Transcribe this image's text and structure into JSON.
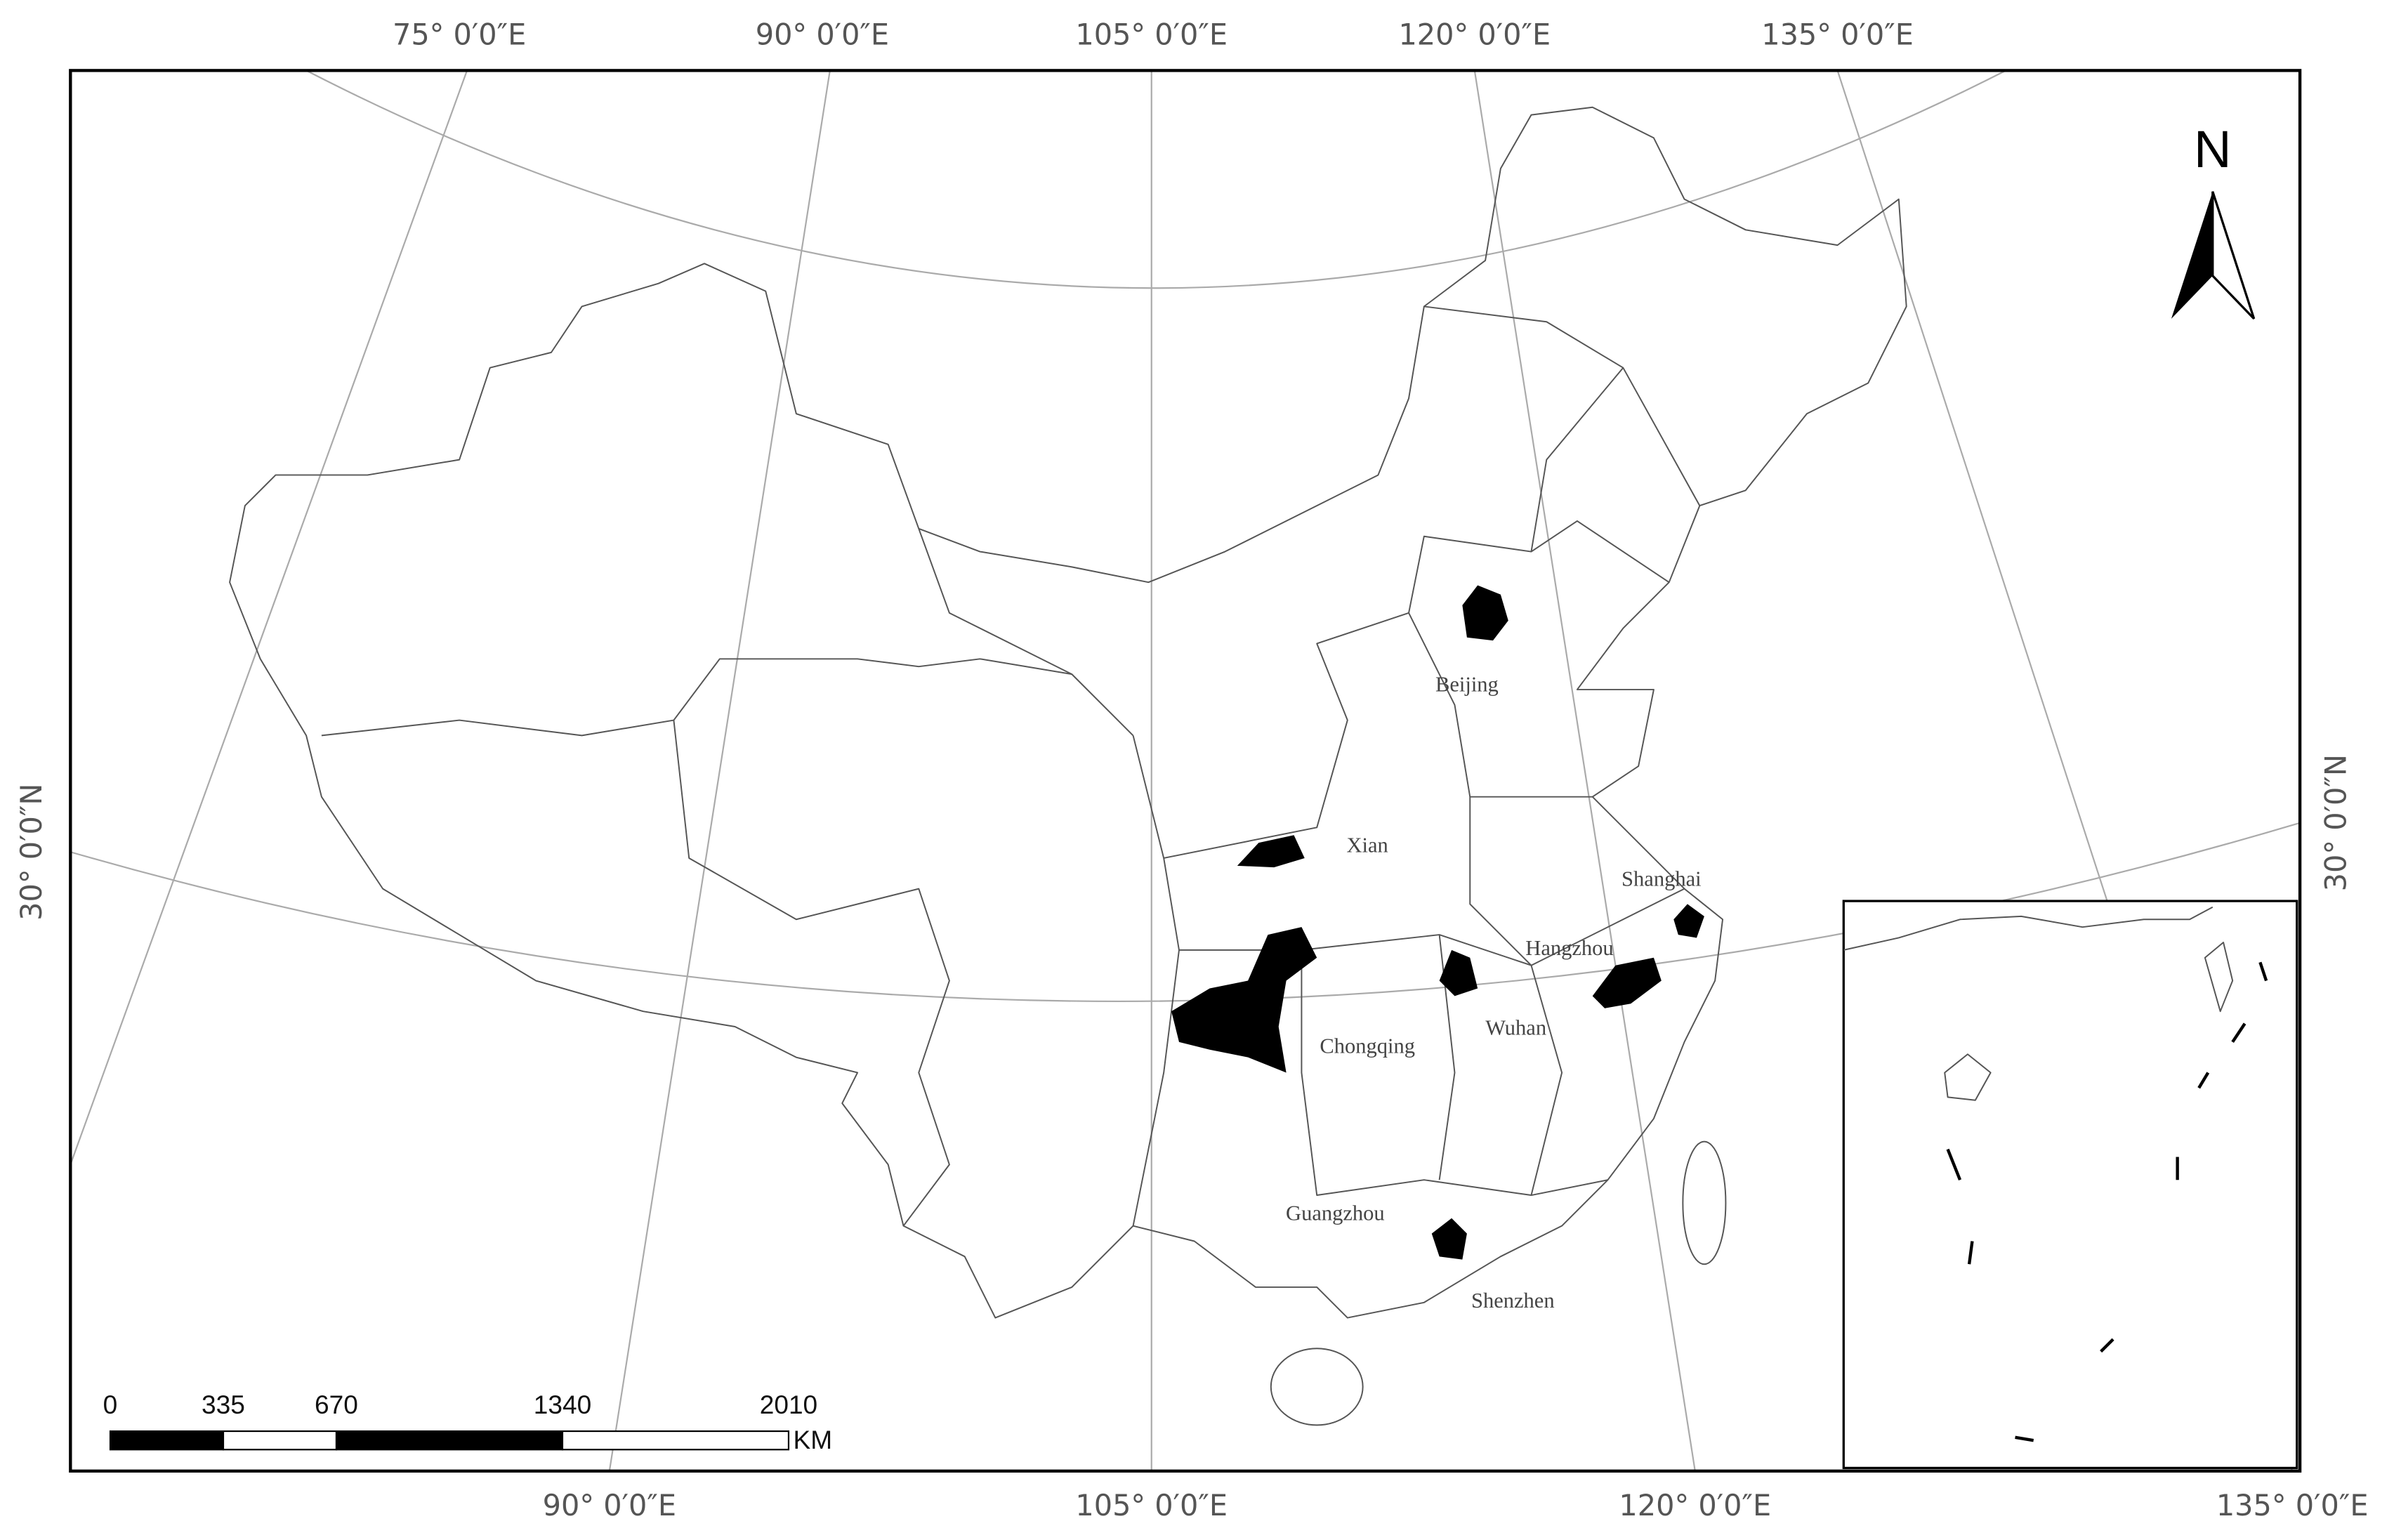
{
  "graticule_labels": {
    "top": [
      "75° 0′0″E",
      "90° 0′0″E",
      "105° 0′0″E",
      "120° 0′0″E",
      "135° 0′0″E"
    ],
    "bottom": [
      "90° 0′0″E",
      "105° 0′0″E",
      "120° 0′0″E",
      "135° 0′0″E"
    ],
    "left": "30° 0′0″N",
    "right": "30° 0′0″N"
  },
  "north_arrow": "N",
  "cities": [
    "Beijing",
    "Xian",
    "Shanghai",
    "Hangzhou",
    "Wuhan",
    "Chongqing",
    "Guangzhou",
    "Shenzhen"
  ],
  "scale_bar": {
    "ticks": [
      0,
      335,
      670,
      1340,
      2010
    ],
    "unit": "KM"
  }
}
